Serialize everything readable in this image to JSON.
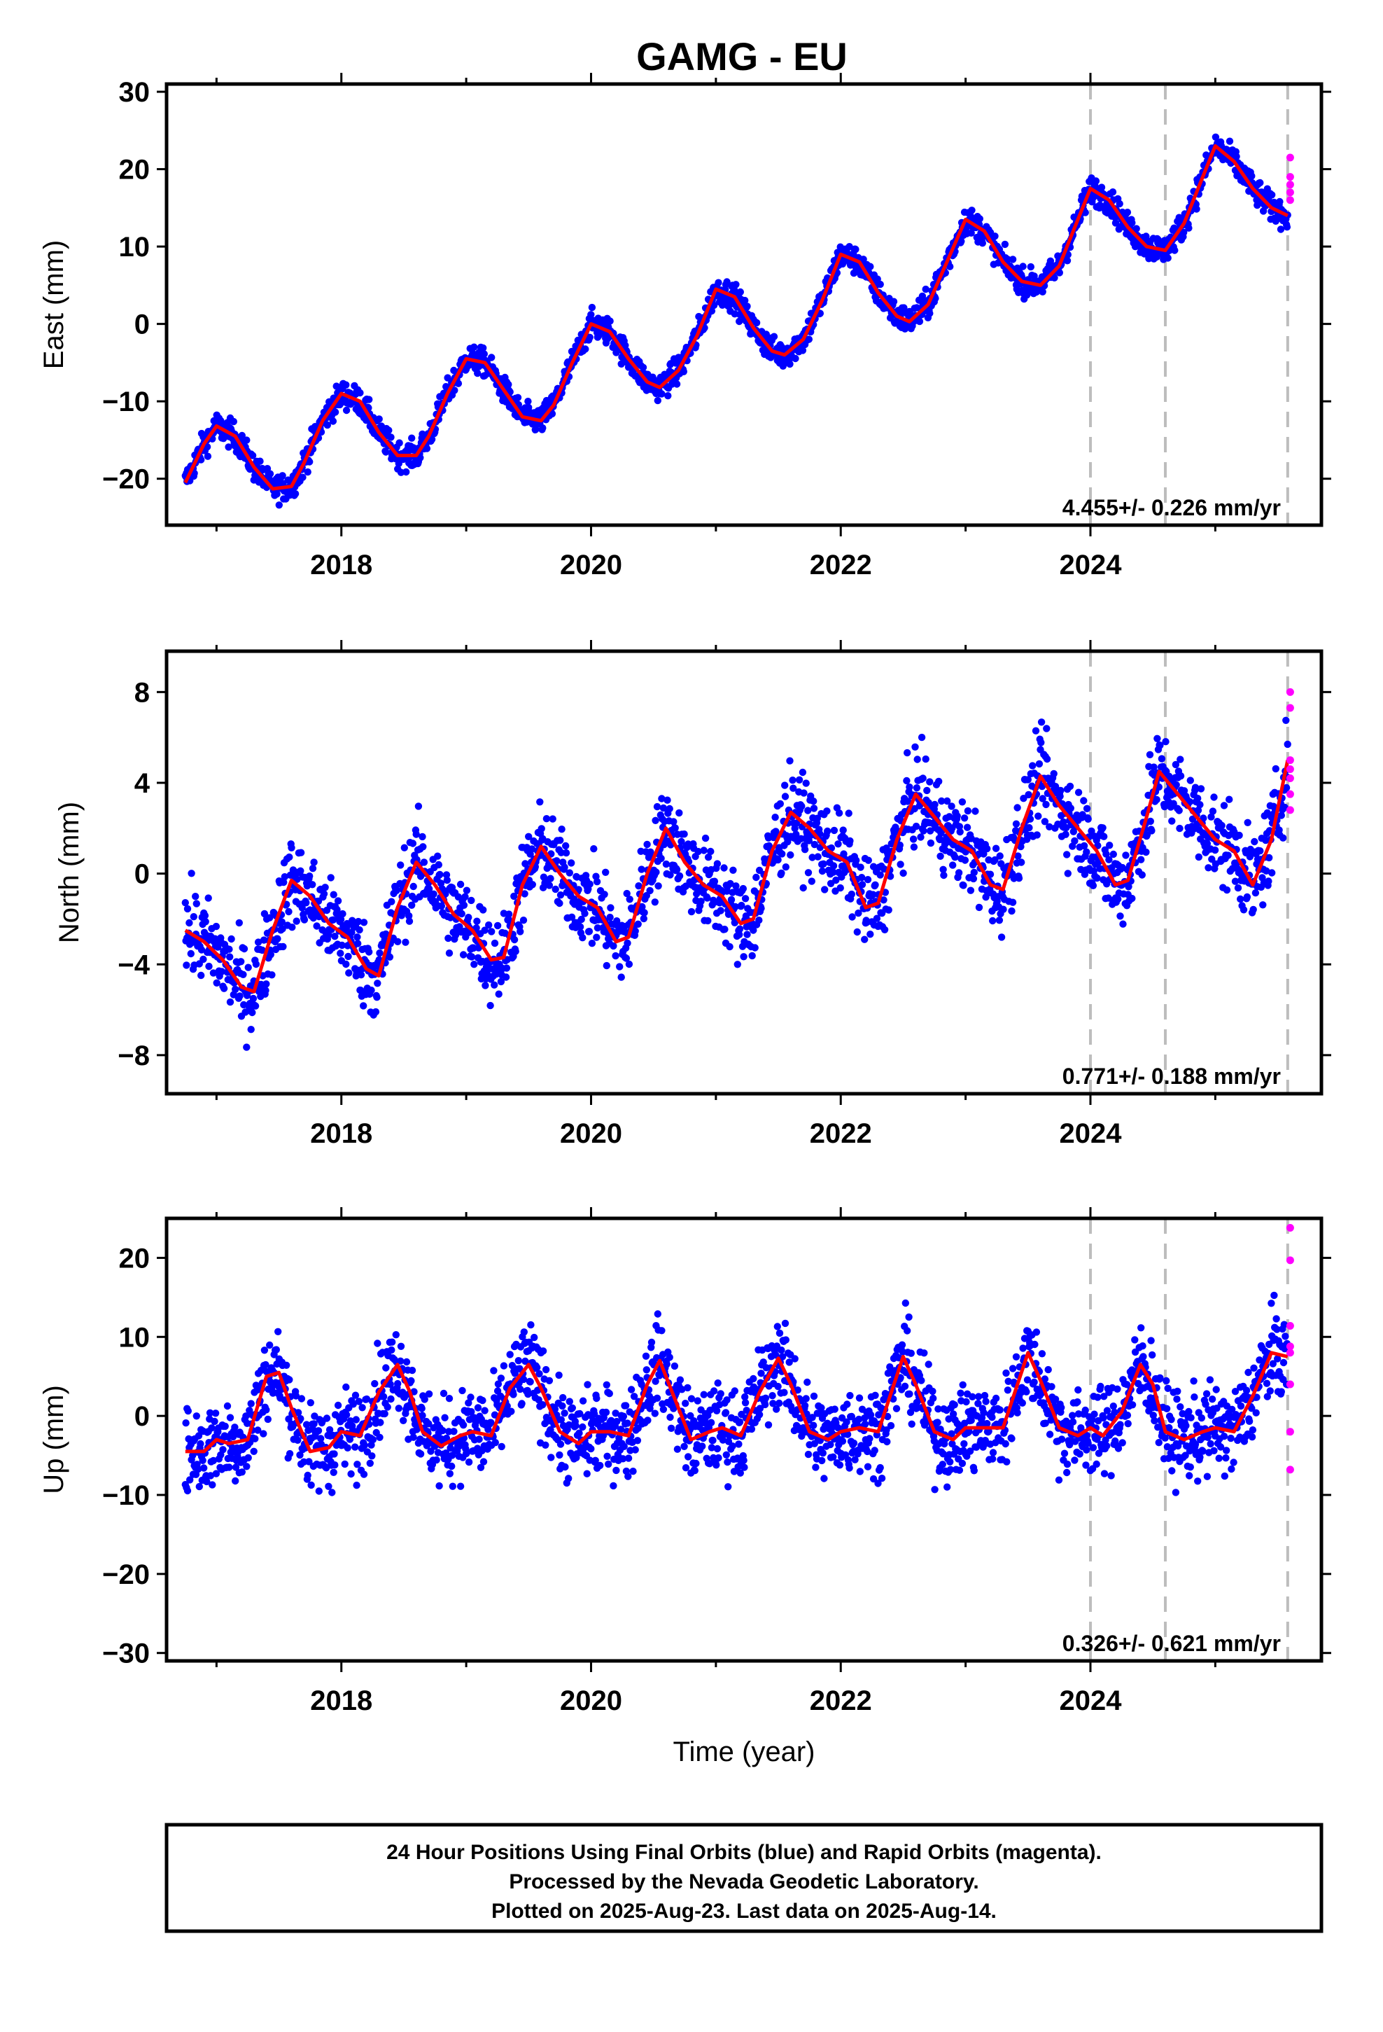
{
  "title": "GAMG - EU",
  "colors": {
    "final_orbits": "#0000ff",
    "rapid_orbits": "#ff00ff",
    "model": "#ff0000",
    "event_lines": "#bdbdbd",
    "frame": "#000000"
  },
  "chart_data": [
    {
      "type": "scatter",
      "ylabel": "East (mm)",
      "xlabel": "",
      "xlim": [
        2016.6,
        2025.85
      ],
      "ylim": [
        -26,
        31
      ],
      "yticks": [
        -20,
        -10,
        0,
        10,
        20,
        30
      ],
      "ytick_labels": [
        "−20",
        "−10",
        "0",
        "10",
        "20",
        "30"
      ],
      "xticks": [
        2018,
        2020,
        2022,
        2024
      ],
      "xtick_labels": [
        "2018",
        "2020",
        "2022",
        "2024"
      ],
      "rate_label": "4.455+/- 0.226 mm/yr",
      "event_lines": [
        2024.0,
        2024.6,
        2025.58
      ],
      "series": [
        {
          "x": [
            2016.75,
            2016.9,
            2017.0,
            2017.15,
            2017.3,
            2017.45,
            2017.6,
            2017.7,
            2017.85,
            2018.0,
            2018.15,
            2018.3,
            2018.45,
            2018.6,
            2018.7,
            2018.85,
            2019.0,
            2019.15,
            2019.3,
            2019.45,
            2019.6,
            2019.7,
            2019.85,
            2020.0,
            2020.15,
            2020.3,
            2020.45,
            2020.55,
            2020.7,
            2020.85,
            2021.0,
            2021.15,
            2021.3,
            2021.45,
            2021.55,
            2021.7,
            2021.85,
            2022.0,
            2022.15,
            2022.3,
            2022.45,
            2022.55,
            2022.7,
            2022.85,
            2023.0,
            2023.15,
            2023.3,
            2023.45,
            2023.6,
            2023.75,
            2023.85,
            2024.0,
            2024.15,
            2024.3,
            2024.45,
            2024.6,
            2024.75,
            2024.9,
            2025.0,
            2025.15,
            2025.3,
            2025.45,
            2025.58
          ],
          "y": [
            -20.5,
            -15.5,
            -13.2,
            -14.5,
            -18.5,
            -21.3,
            -21.0,
            -18.0,
            -12.5,
            -9.0,
            -10.0,
            -14.0,
            -17.0,
            -17.0,
            -14.5,
            -9.0,
            -4.5,
            -5.0,
            -8.5,
            -12.0,
            -12.5,
            -10.5,
            -5.0,
            0.0,
            -1.0,
            -4.5,
            -7.5,
            -8.2,
            -6.0,
            -1.5,
            4.5,
            3.5,
            -0.5,
            -3.5,
            -4.0,
            -2.0,
            3.0,
            9.0,
            8.0,
            4.0,
            1.0,
            0.3,
            2.5,
            8.0,
            13.5,
            12.0,
            8.0,
            5.5,
            5.0,
            7.5,
            11.5,
            17.5,
            16.0,
            12.5,
            10.0,
            9.5,
            13.0,
            19.0,
            23.0,
            21.0,
            17.5,
            15.0,
            14.0
          ]
        },
        {
          "x": [
            2025.6,
            2025.6,
            2025.6,
            2025.6,
            2025.6
          ],
          "y": [
            21.5,
            19.0,
            18.0,
            17.0,
            16.0
          ]
        }
      ]
    },
    {
      "type": "scatter",
      "ylabel": "North (mm)",
      "xlabel": "",
      "xlim": [
        2016.6,
        2025.85
      ],
      "ylim": [
        -9.7,
        9.8
      ],
      "yticks": [
        -8,
        -4,
        0,
        4,
        8
      ],
      "ytick_labels": [
        "−8",
        "−4",
        "0",
        "4",
        "8"
      ],
      "xticks": [
        2018,
        2020,
        2022,
        2024
      ],
      "xtick_labels": [
        "2018",
        "2020",
        "2022",
        "2024"
      ],
      "rate_label": "0.771+/- 0.188 mm/yr",
      "event_lines": [
        2024.0,
        2024.6,
        2025.58
      ],
      "series": [
        {
          "x": [
            2016.75,
            2016.9,
            2017.05,
            2017.2,
            2017.3,
            2017.45,
            2017.6,
            2017.75,
            2017.9,
            2018.05,
            2018.2,
            2018.3,
            2018.45,
            2018.6,
            2018.75,
            2018.9,
            2019.05,
            2019.2,
            2019.3,
            2019.45,
            2019.6,
            2019.75,
            2019.9,
            2020.05,
            2020.2,
            2020.3,
            2020.45,
            2020.6,
            2020.75,
            2020.9,
            2021.05,
            2021.2,
            2021.3,
            2021.45,
            2021.6,
            2021.75,
            2021.9,
            2022.05,
            2022.2,
            2022.3,
            2022.45,
            2022.6,
            2022.75,
            2022.9,
            2023.05,
            2023.2,
            2023.3,
            2023.45,
            2023.6,
            2023.75,
            2023.9,
            2024.05,
            2024.2,
            2024.3,
            2024.45,
            2024.55,
            2024.7,
            2024.85,
            2025.0,
            2025.15,
            2025.3,
            2025.45,
            2025.58
          ],
          "y": [
            -2.5,
            -3.0,
            -3.8,
            -5.0,
            -5.2,
            -2.5,
            -0.3,
            -1.0,
            -2.2,
            -2.8,
            -4.2,
            -4.5,
            -1.5,
            0.5,
            -0.5,
            -1.8,
            -2.5,
            -3.8,
            -3.7,
            -0.5,
            1.2,
            0.0,
            -1.0,
            -1.5,
            -3.0,
            -2.8,
            0.0,
            2.0,
            0.5,
            -0.5,
            -1.0,
            -2.2,
            -2.0,
            1.0,
            2.7,
            2.0,
            1.0,
            0.5,
            -1.5,
            -1.3,
            1.5,
            3.5,
            2.5,
            1.5,
            1.0,
            -0.5,
            -0.7,
            2.0,
            4.3,
            3.0,
            2.0,
            1.0,
            -0.5,
            -0.3,
            2.5,
            4.5,
            3.5,
            2.5,
            1.5,
            1.0,
            -0.5,
            1.5,
            5.0
          ]
        },
        {
          "x": [
            2025.6,
            2025.6,
            2025.6,
            2025.6,
            2025.6,
            2025.6,
            2025.6
          ],
          "y": [
            8.0,
            7.3,
            5.0,
            4.6,
            4.2,
            3.5,
            2.8
          ]
        }
      ]
    },
    {
      "type": "scatter",
      "ylabel": "Up (mm)",
      "xlabel": "Time (year)",
      "xlim": [
        2016.6,
        2025.85
      ],
      "ylim": [
        -31,
        25
      ],
      "yticks": [
        -30,
        -20,
        -10,
        0,
        10,
        20
      ],
      "ytick_labels": [
        "−30",
        "−20",
        "−10",
        "0",
        "10",
        "20"
      ],
      "xticks": [
        2018,
        2020,
        2022,
        2024
      ],
      "xtick_labels": [
        "2018",
        "2020",
        "2022",
        "2024"
      ],
      "rate_label": "0.326+/- 0.621 mm/yr",
      "event_lines": [
        2024.0,
        2024.6,
        2025.58
      ],
      "series": [
        {
          "x": [
            2016.75,
            2016.9,
            2017.0,
            2017.1,
            2017.25,
            2017.4,
            2017.5,
            2017.6,
            2017.75,
            2017.9,
            2018.0,
            2018.15,
            2018.3,
            2018.45,
            2018.55,
            2018.65,
            2018.8,
            2018.95,
            2019.05,
            2019.2,
            2019.35,
            2019.5,
            2019.6,
            2019.75,
            2019.9,
            2020.0,
            2020.15,
            2020.3,
            2020.45,
            2020.55,
            2020.65,
            2020.8,
            2020.95,
            2021.05,
            2021.2,
            2021.35,
            2021.5,
            2021.6,
            2021.75,
            2021.9,
            2022.0,
            2022.15,
            2022.3,
            2022.5,
            2022.6,
            2022.75,
            2022.9,
            2023.0,
            2023.15,
            2023.3,
            2023.5,
            2023.6,
            2023.75,
            2023.9,
            2024.0,
            2024.1,
            2024.25,
            2024.4,
            2024.5,
            2024.6,
            2024.75,
            2024.9,
            2025.0,
            2025.15,
            2025.3,
            2025.45,
            2025.58
          ],
          "y": [
            -4.5,
            -4.5,
            -3.0,
            -3.5,
            -3.0,
            5.0,
            5.5,
            1.0,
            -4.5,
            -4.0,
            -2.0,
            -2.5,
            3.0,
            6.5,
            3.0,
            -2.0,
            -3.8,
            -2.5,
            -2.0,
            -2.5,
            3.5,
            6.5,
            3.5,
            -2.0,
            -3.5,
            -2.0,
            -2.0,
            -2.5,
            4.0,
            7.0,
            3.0,
            -3.0,
            -2.0,
            -1.5,
            -2.5,
            3.0,
            7.3,
            4.0,
            -2.0,
            -3.0,
            -2.0,
            -1.5,
            -2.0,
            7.5,
            4.0,
            -2.0,
            -3.0,
            -1.5,
            -1.5,
            -1.5,
            8.0,
            4.5,
            -1.5,
            -2.5,
            -1.5,
            -2.5,
            0.5,
            6.5,
            4.0,
            -2.0,
            -3.0,
            -2.0,
            -1.5,
            -2.0,
            2.5,
            8.0,
            7.5
          ]
        },
        {
          "x": [
            2025.6,
            2025.6,
            2025.6,
            2025.6,
            2025.6,
            2025.6,
            2025.6,
            2025.6
          ],
          "y": [
            23.8,
            19.7,
            11.4,
            8.8,
            8.0,
            4.0,
            -2.0,
            -6.8
          ]
        }
      ]
    }
  ],
  "footer": {
    "line1": "24 Hour Positions Using Final Orbits (blue) and Rapid Orbits (magenta).",
    "line2": "Processed by the Nevada Geodetic Laboratory.",
    "line3": "Plotted on 2025-Aug-23. Last data on 2025-Aug-14."
  }
}
